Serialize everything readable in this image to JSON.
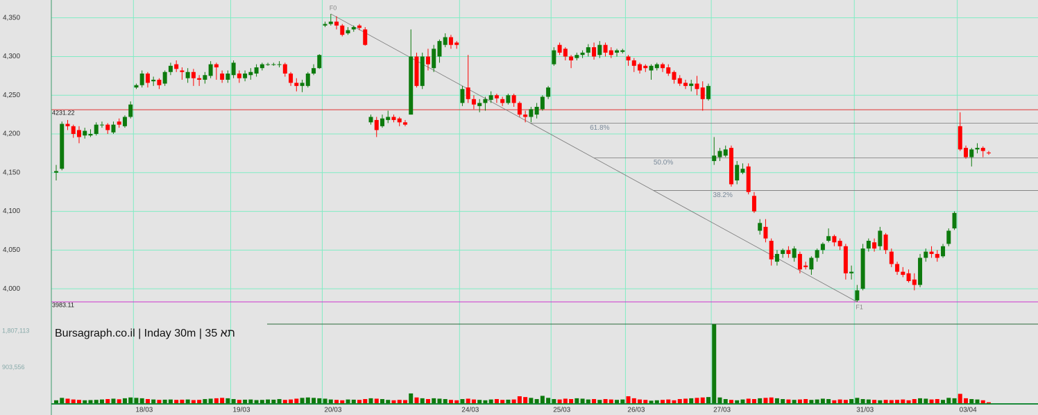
{
  "chart_data": {
    "type": "candlestick",
    "title": "Bursagraph.co.il | Inday 30m | 35 תא",
    "categories": [
      null,
      null,
      null,
      null,
      null,
      null,
      null,
      null,
      null,
      null,
      null,
      null,
      null,
      null,
      "18/03",
      null,
      null,
      null,
      null,
      null,
      null,
      null,
      null,
      null,
      null,
      null,
      null,
      null,
      null,
      null,
      null,
      "19/03",
      null,
      null,
      null,
      null,
      null,
      null,
      null,
      null,
      null,
      null,
      null,
      null,
      null,
      null,
      null,
      "20/03",
      null,
      null,
      null,
      null,
      null,
      null,
      null,
      null,
      null,
      null,
      null,
      null,
      null,
      null,
      null,
      null,
      null,
      null,
      null,
      null,
      null,
      null,
      null,
      "24/03",
      null,
      null,
      null,
      null,
      null,
      null,
      null,
      null,
      null,
      null,
      null,
      null,
      null,
      null,
      null,
      "25/03",
      null,
      null,
      null,
      null,
      null,
      null,
      null,
      null,
      null,
      null,
      null,
      null,
      "26/03",
      null,
      null,
      null,
      null,
      null,
      null,
      null,
      null,
      null,
      null,
      null,
      null,
      null,
      null,
      "27/03",
      null,
      null,
      null,
      null,
      null,
      null,
      null,
      null,
      null,
      null,
      null,
      null,
      null,
      null,
      null,
      null,
      null,
      null,
      null,
      null,
      null,
      null,
      null,
      null,
      "31/03",
      null,
      null,
      null,
      null,
      null,
      null,
      null,
      null,
      null,
      null,
      null,
      null,
      null,
      null,
      null,
      null,
      null,
      "03/04",
      null,
      null,
      null,
      null,
      null
    ],
    "open_close_high_low": [
      [
        4150,
        4152,
        4160,
        4140
      ],
      [
        4155,
        4213,
        4216,
        4153
      ],
      [
        4213,
        4210,
        4218,
        4205
      ],
      [
        4210,
        4200,
        4212,
        4195
      ],
      [
        4205,
        4196,
        4210,
        4188
      ],
      [
        4198,
        4204,
        4208,
        4194
      ],
      [
        4198,
        4200,
        4206,
        4196
      ],
      [
        4200,
        4212,
        4215,
        4198
      ],
      [
        4212,
        4212,
        4216,
        4208
      ],
      [
        4212,
        4205,
        4214,
        4200
      ],
      [
        4202,
        4212,
        4216,
        4200
      ],
      [
        4216,
        4212,
        4220,
        4208
      ],
      [
        4210,
        4222,
        4224,
        4208
      ],
      [
        4222,
        4238,
        4242,
        4220
      ],
      [
        4260,
        4263,
        4265,
        4258
      ],
      [
        4263,
        4278,
        4282,
        4260
      ],
      [
        4278,
        4266,
        4280,
        4260
      ],
      [
        4268,
        4270,
        4274,
        4262
      ],
      [
        4270,
        4263,
        4272,
        4258
      ],
      [
        4265,
        4280,
        4282,
        4262
      ],
      [
        4280,
        4288,
        4292,
        4276
      ],
      [
        4290,
        4284,
        4295,
        4280
      ],
      [
        4282,
        4280,
        4286,
        4270
      ],
      [
        4272,
        4280,
        4285,
        4266
      ],
      [
        4280,
        4272,
        4284,
        4262
      ],
      [
        4272,
        4270,
        4276,
        4262
      ],
      [
        4270,
        4276,
        4280,
        4265
      ],
      [
        4275,
        4290,
        4294,
        4272
      ],
      [
        4290,
        4286,
        4292,
        4270
      ],
      [
        4278,
        4270,
        4282,
        4266
      ],
      [
        4270,
        4278,
        4282,
        4266
      ],
      [
        4276,
        4292,
        4295,
        4272
      ],
      [
        4278,
        4272,
        4282,
        4266
      ],
      [
        4272,
        4278,
        4282,
        4268
      ],
      [
        4276,
        4280,
        4285,
        4270
      ],
      [
        4278,
        4286,
        4290,
        4274
      ],
      [
        4285,
        4290,
        4292,
        4282
      ],
      [
        4290,
        4290,
        4292,
        4288
      ],
      [
        4290,
        4290,
        4292,
        4288
      ],
      [
        4290,
        4290,
        4294,
        4286
      ],
      [
        4290,
        4278,
        4292,
        4274
      ],
      [
        4278,
        4266,
        4280,
        4262
      ],
      [
        4266,
        4262,
        4272,
        4255
      ],
      [
        4262,
        4266,
        4270,
        4254
      ],
      [
        4262,
        4278,
        4280,
        4260
      ],
      [
        4278,
        4285,
        4290,
        4276
      ],
      [
        4285,
        4302,
        4303,
        4284
      ],
      [
        4340,
        4342,
        4345,
        4338
      ],
      [
        4342,
        4345,
        4355,
        4340
      ],
      [
        4345,
        4340,
        4352,
        4335
      ],
      [
        4340,
        4328,
        4342,
        4326
      ],
      [
        4330,
        4334,
        4338,
        4328
      ],
      [
        4335,
        4338,
        4340,
        4332
      ],
      [
        4340,
        4337,
        4342,
        4334
      ],
      [
        4335,
        4315,
        4338,
        4314
      ],
      [
        4215,
        4222,
        4225,
        4212
      ],
      [
        4218,
        4205,
        4222,
        4196
      ],
      [
        4210,
        4220,
        4225,
        4208
      ],
      [
        4218,
        4222,
        4230,
        4214
      ],
      [
        4222,
        4218,
        4225,
        4215
      ],
      [
        4220,
        4215,
        4222,
        4210
      ],
      [
        4215,
        4212,
        4218,
        4210
      ],
      [
        4225,
        4300,
        4335,
        4225
      ],
      [
        4300,
        4262,
        4305,
        4260
      ],
      [
        4262,
        4300,
        4305,
        4258
      ],
      [
        4300,
        4290,
        4310,
        4282
      ],
      [
        4285,
        4310,
        4315,
        4280
      ],
      [
        4300,
        4320,
        4322,
        4292
      ],
      [
        4315,
        4325,
        4330,
        4312
      ],
      [
        4325,
        4315,
        4328,
        4310
      ],
      [
        4318,
        4315,
        4320,
        4310
      ],
      [
        4240,
        4258,
        4262,
        4236
      ],
      [
        4260,
        4245,
        4302,
        4240
      ],
      [
        4245,
        4238,
        4250,
        4232
      ],
      [
        4236,
        4240,
        4245,
        4228
      ],
      [
        4240,
        4245,
        4248,
        4230
      ],
      [
        4244,
        4250,
        4255,
        4240
      ],
      [
        4250,
        4246,
        4252,
        4240
      ],
      [
        4245,
        4240,
        4248,
        4236
      ],
      [
        4240,
        4250,
        4252,
        4238
      ],
      [
        4250,
        4240,
        4252,
        4235
      ],
      [
        4240,
        4225,
        4242,
        4222
      ],
      [
        4225,
        4222,
        4230,
        4215
      ],
      [
        4222,
        4232,
        4235,
        4215
      ],
      [
        4225,
        4235,
        4240,
        4220
      ],
      [
        4232,
        4248,
        4250,
        4230
      ],
      [
        4248,
        4260,
        4262,
        4245
      ],
      [
        4290,
        4308,
        4312,
        4288
      ],
      [
        4315,
        4305,
        4318,
        4302
      ],
      [
        4310,
        4300,
        4312,
        4295
      ],
      [
        4300,
        4295,
        4302,
        4285
      ],
      [
        4298,
        4302,
        4305,
        4295
      ],
      [
        4302,
        4305,
        4308,
        4298
      ],
      [
        4305,
        4312,
        4316,
        4300
      ],
      [
        4312,
        4300,
        4318,
        4296
      ],
      [
        4302,
        4315,
        4320,
        4298
      ],
      [
        4315,
        4305,
        4318,
        4300
      ],
      [
        4308,
        4302,
        4312,
        4298
      ],
      [
        4305,
        4308,
        4310,
        4300
      ],
      [
        4306,
        4308,
        4310,
        4304
      ],
      [
        4300,
        4295,
        4302,
        4288
      ],
      [
        4295,
        4288,
        4298,
        4280
      ],
      [
        4290,
        4282,
        4292,
        4278
      ],
      [
        4288,
        4285,
        4290,
        4280
      ],
      [
        4282,
        4288,
        4290,
        4270
      ],
      [
        4285,
        4290,
        4292,
        4282
      ],
      [
        4290,
        4285,
        4292,
        4280
      ],
      [
        4286,
        4278,
        4290,
        4275
      ],
      [
        4280,
        4270,
        4282,
        4265
      ],
      [
        4272,
        4265,
        4276,
        4262
      ],
      [
        4266,
        4262,
        4270,
        4258
      ],
      [
        4262,
        4265,
        4270,
        4255
      ],
      [
        4265,
        4258,
        4275,
        4250
      ],
      [
        4260,
        4245,
        4268,
        4230
      ],
      [
        4245,
        4262,
        4265,
        4243
      ],
      [
        4165,
        4172,
        4196,
        4160
      ],
      [
        4170,
        4178,
        4182,
        4165
      ],
      [
        4172,
        4180,
        4185,
        4170
      ],
      [
        4182,
        4135,
        4185,
        4132
      ],
      [
        4140,
        4160,
        4165,
        4135
      ],
      [
        4150,
        4155,
        4162,
        4148
      ],
      [
        4158,
        4125,
        4162,
        4122
      ],
      [
        4120,
        4100,
        4125,
        4098
      ],
      [
        4075,
        4085,
        4090,
        4070
      ],
      [
        4080,
        4065,
        4090,
        4060
      ],
      [
        4062,
        4038,
        4065,
        4030
      ],
      [
        4035,
        4045,
        4050,
        4030
      ],
      [
        4045,
        4050,
        4052,
        4040
      ],
      [
        4050,
        4045,
        4055,
        4040
      ],
      [
        4040,
        4052,
        4055,
        4035
      ],
      [
        4045,
        4025,
        4048,
        4020
      ],
      [
        4030,
        4028,
        4035,
        4025
      ],
      [
        4025,
        4040,
        4042,
        4018
      ],
      [
        4040,
        4050,
        4052,
        4035
      ],
      [
        4050,
        4058,
        4060,
        4045
      ],
      [
        4062,
        4068,
        4078,
        4060
      ],
      [
        4068,
        4060,
        4070,
        4055
      ],
      [
        4062,
        4055,
        4065,
        4050
      ],
      [
        4055,
        4020,
        4058,
        4012
      ],
      [
        4020,
        4022,
        4030,
        4012
      ],
      [
        3985,
        3998,
        4005,
        3983
      ],
      [
        4000,
        4052,
        4058,
        3998
      ],
      [
        4052,
        4062,
        4065,
        4048
      ],
      [
        4060,
        4052,
        4065,
        4048
      ],
      [
        4055,
        4075,
        4080,
        4050
      ],
      [
        4070,
        4050,
        4072,
        4045
      ],
      [
        4048,
        4032,
        4052,
        4028
      ],
      [
        4032,
        4022,
        4035,
        4018
      ],
      [
        4022,
        4018,
        4028,
        4015
      ],
      [
        4020,
        4010,
        4025,
        4008
      ],
      [
        4012,
        4005,
        4020,
        3998
      ],
      [
        4005,
        4040,
        4045,
        4002
      ],
      [
        4040,
        4048,
        4052,
        4035
      ],
      [
        4048,
        4045,
        4055,
        4040
      ],
      [
        4045,
        4040,
        4050,
        4035
      ],
      [
        4042,
        4055,
        4058,
        4040
      ],
      [
        4058,
        4075,
        4078,
        4055
      ],
      [
        4078,
        4098,
        4100,
        4076
      ],
      [
        4210,
        4180,
        4228,
        4178
      ],
      [
        4182,
        4170,
        4185,
        4168
      ],
      [
        4170,
        4180,
        4182,
        4158
      ],
      [
        4180,
        4182,
        4188,
        4175
      ],
      [
        4182,
        4178,
        4184,
        4170
      ],
      [
        4176,
        4175,
        4178,
        4173
      ]
    ],
    "volume": [
      90000,
      150000,
      130000,
      110000,
      100000,
      90000,
      95000,
      100000,
      110000,
      120000,
      130000,
      115000,
      140000,
      160000,
      150000,
      140000,
      120000,
      110000,
      100000,
      105000,
      110000,
      100000,
      105000,
      110000,
      95000,
      100000,
      120000,
      130000,
      140000,
      150000,
      140000,
      120000,
      100000,
      105000,
      110000,
      95000,
      100000,
      110000,
      105000,
      120000,
      100000,
      110000,
      130000,
      150000,
      160000,
      150000,
      140000,
      130000,
      110000,
      100000,
      90000,
      110000,
      105000,
      100000,
      120000,
      140000,
      130000,
      120000,
      100000,
      90000,
      100000,
      95000,
      260000,
      160000,
      140000,
      120000,
      140000,
      130000,
      120000,
      100000,
      90000,
      120000,
      130000,
      110000,
      100000,
      90000,
      110000,
      120000,
      100000,
      105000,
      110000,
      190000,
      170000,
      150000,
      120000,
      200000,
      150000,
      120000,
      110000,
      130000,
      120000,
      140000,
      130000,
      110000,
      120000,
      100000,
      120000,
      110000,
      100000,
      110000,
      190000,
      140000,
      110000,
      100000,
      80000,
      90000,
      100000,
      110000,
      90000,
      120000,
      130000,
      140000,
      150000,
      160000,
      170000,
      1990000,
      160000,
      120000,
      100000,
      90000,
      110000,
      130000,
      120000,
      140000,
      150000,
      160000,
      140000,
      120000,
      110000,
      100000,
      110000,
      120000,
      100000,
      110000,
      130000,
      120000,
      90000,
      110000,
      100000,
      120000,
      150000,
      120000,
      110000,
      100000,
      90000,
      100000,
      95000,
      100000,
      110000,
      90000,
      120000,
      140000,
      130000,
      110000,
      120000,
      100000,
      150000,
      140000,
      250000,
      140000,
      120000,
      110000,
      90000,
      40000
    ],
    "up_color": "#0d7a0d",
    "down_color": "#ff0000",
    "ylim": [
      3958,
      4373
    ],
    "yticks": [
      {
        "value": 4000,
        "label": "4,000"
      },
      {
        "value": 4050,
        "label": "4,050"
      },
      {
        "value": 4100,
        "label": "4,100"
      },
      {
        "value": 4150,
        "label": "4,150"
      },
      {
        "value": 4200,
        "label": "4,200"
      },
      {
        "value": 4250,
        "label": "4,250"
      },
      {
        "value": 4300,
        "label": "4,300"
      },
      {
        "value": 4350,
        "label": "4,350"
      }
    ],
    "volume_ylim": [
      0,
      2000000
    ],
    "volume_ticks": [
      {
        "value": 903556,
        "label": "903,556"
      },
      {
        "value": 1807113,
        "label": "1,807,113"
      }
    ],
    "levels": [
      {
        "value": 4231.22,
        "label": "4231.22",
        "color": "#e03030"
      },
      {
        "value": 3983.11,
        "label": "3983.11",
        "color": "#cc33cc"
      }
    ],
    "trend_labels": [
      "F0",
      "F1"
    ],
    "fib_levels": [
      {
        "value": 4214,
        "label": "61.8%"
      },
      {
        "value": 4169,
        "label": "50.0%"
      },
      {
        "value": 4127,
        "label": "38.2%"
      }
    ],
    "grid": true
  }
}
